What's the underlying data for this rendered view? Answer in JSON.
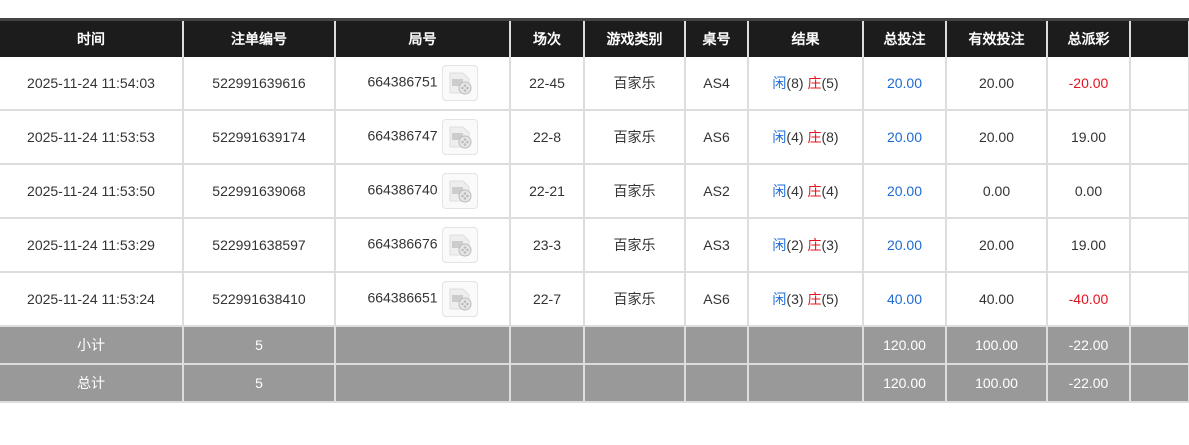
{
  "headers": [
    "时间",
    "注单编号",
    "局号",
    "场次",
    "游戏类别",
    "桌号",
    "结果",
    "总投注",
    "有效投注",
    "总派彩",
    ""
  ],
  "rows": [
    {
      "time": "2025-11-24 11:54:03",
      "bet_id": "522991639616",
      "round": "664386751",
      "session": "22-45",
      "game": "百家乐",
      "table": "AS4",
      "player": "闲",
      "player_pts": "(8)",
      "banker": "庄",
      "banker_pts": "(5)",
      "total": "20.00",
      "valid": "20.00",
      "payout": "-20.00",
      "payout_neg": true
    },
    {
      "time": "2025-11-24 11:53:53",
      "bet_id": "522991639174",
      "round": "664386747",
      "session": "22-8",
      "game": "百家乐",
      "table": "AS6",
      "player": "闲",
      "player_pts": "(4)",
      "banker": "庄",
      "banker_pts": "(8)",
      "total": "20.00",
      "valid": "20.00",
      "payout": "19.00",
      "payout_neg": false
    },
    {
      "time": "2025-11-24 11:53:50",
      "bet_id": "522991639068",
      "round": "664386740",
      "session": "22-21",
      "game": "百家乐",
      "table": "AS2",
      "player": "闲",
      "player_pts": "(4)",
      "banker": "庄",
      "banker_pts": "(4)",
      "total": "20.00",
      "valid": "0.00",
      "payout": "0.00",
      "payout_neg": false
    },
    {
      "time": "2025-11-24 11:53:29",
      "bet_id": "522991638597",
      "round": "664386676",
      "session": "23-3",
      "game": "百家乐",
      "table": "AS3",
      "player": "闲",
      "player_pts": "(2)",
      "banker": "庄",
      "banker_pts": "(3)",
      "total": "20.00",
      "valid": "20.00",
      "payout": "19.00",
      "payout_neg": false
    },
    {
      "time": "2025-11-24 11:53:24",
      "bet_id": "522991638410",
      "round": "664386651",
      "session": "22-7",
      "game": "百家乐",
      "table": "AS6",
      "player": "闲",
      "player_pts": "(3)",
      "banker": "庄",
      "banker_pts": "(5)",
      "total": "40.00",
      "valid": "40.00",
      "payout": "-40.00",
      "payout_neg": true
    }
  ],
  "summary": [
    {
      "label": "小计",
      "count": "5",
      "total": "120.00",
      "valid": "100.00",
      "payout": "-22.00"
    },
    {
      "label": "总计",
      "count": "5",
      "total": "120.00",
      "valid": "100.00",
      "payout": "-22.00"
    }
  ],
  "icons": {
    "round_video": "video-replay-icon"
  },
  "colors": {
    "player": "#1e6bd6",
    "banker": "#e0141e",
    "negative": "#e0141e",
    "total_bet": "#1e6bd6"
  }
}
